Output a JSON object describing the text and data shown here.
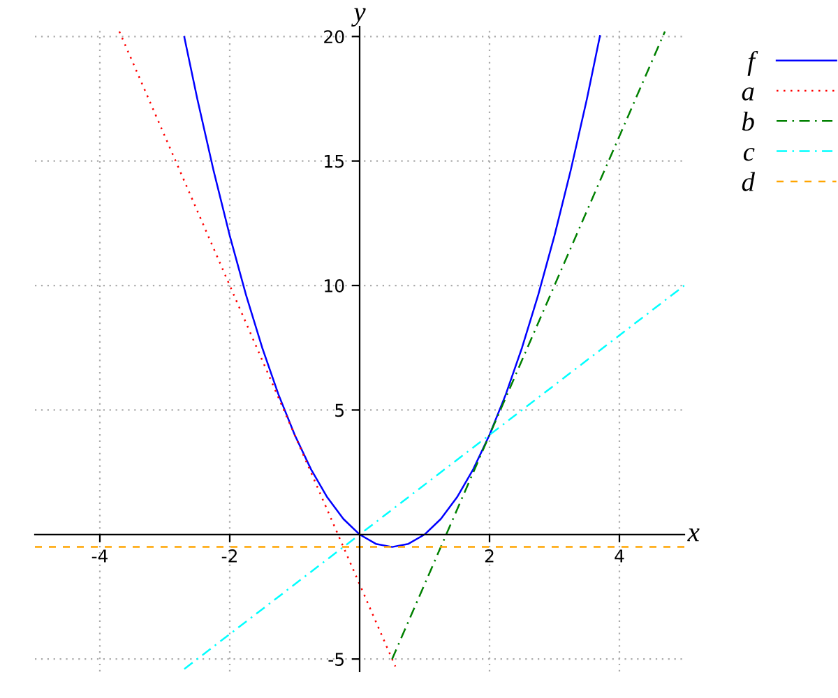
{
  "chart_data": {
    "type": "line",
    "xlabel": "x",
    "ylabel": "y",
    "xlim": [
      -5,
      5
    ],
    "ylim": [
      -5.5,
      20.4
    ],
    "xticks": [
      -4,
      -2,
      2,
      4
    ],
    "yticks": [
      -5,
      5,
      10,
      15,
      20
    ],
    "grid": true,
    "legend": "top right",
    "series": [
      {
        "name": "f",
        "color": "#0000ff",
        "line_style": "solid",
        "x": [
          -2.7,
          -2.5,
          -2.25,
          -2,
          -1.75,
          -1.5,
          -1.25,
          -1,
          -0.75,
          -0.5,
          -0.25,
          0,
          0.25,
          0.5,
          0.75,
          1,
          1.25,
          1.5,
          1.75,
          2,
          2.25,
          2.5,
          2.75,
          3,
          3.25,
          3.5,
          3.7
        ],
        "values": [
          19.98,
          17.5,
          14.625,
          12,
          9.625,
          7.5,
          5.625,
          4,
          2.625,
          1.5,
          0.625,
          0,
          -0.375,
          -0.5,
          -0.375,
          0,
          0.625,
          1.5,
          2.625,
          4,
          5.625,
          7.5,
          9.625,
          12,
          14.625,
          17.5,
          20.02
        ]
      },
      {
        "name": "a",
        "color": "#ff0000",
        "line_style": "dotted",
        "x": [
          -3.7,
          0.55
        ],
        "values": [
          20.2,
          -5.3
        ]
      },
      {
        "name": "b",
        "color": "#008000",
        "line_style": "dashdot",
        "x": [
          0.5,
          4.7
        ],
        "values": [
          -5,
          20.2
        ]
      },
      {
        "name": "c",
        "color": "#00ffff",
        "line_style": "dashdot",
        "x": [
          -2.7,
          5
        ],
        "values": [
          -5.4,
          10
        ]
      },
      {
        "name": "d",
        "color": "#ffa500",
        "line_style": "dashed",
        "x": [
          -5,
          5
        ],
        "values": [
          -0.5,
          -0.5
        ]
      }
    ]
  }
}
